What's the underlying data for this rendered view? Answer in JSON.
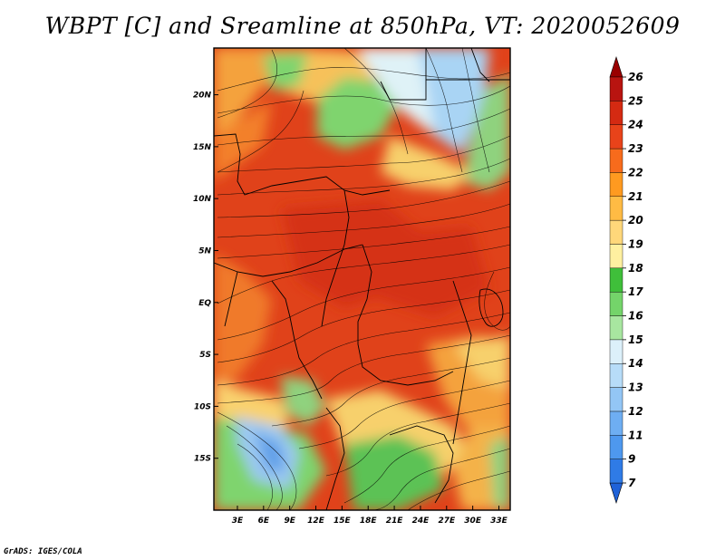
{
  "title": "WBPT [C] and Sreamline at 850hPa, VT: 2020052609",
  "credit": "GrADS: IGES/COLA",
  "map": {
    "lat_labels": [
      "20N",
      "15N",
      "10N",
      "5N",
      "EQ",
      "5S",
      "10S",
      "15S"
    ],
    "lat_values": [
      20,
      15,
      10,
      5,
      0,
      -5,
      -10,
      -15
    ],
    "lon_labels": [
      "3E",
      "6E",
      "9E",
      "12E",
      "15E",
      "18E",
      "21E",
      "24E",
      "27E",
      "30E",
      "33E"
    ],
    "lon_values": [
      3,
      6,
      9,
      12,
      15,
      18,
      21,
      24,
      27,
      30,
      33
    ],
    "lat_range": [
      -20,
      24.5
    ],
    "lon_range": [
      0.3,
      34.3
    ]
  },
  "colorbar": {
    "labels": [
      "7",
      "9",
      "11",
      "12",
      "13",
      "14",
      "15",
      "16",
      "17",
      "18",
      "19",
      "20",
      "21",
      "22",
      "23",
      "24",
      "25",
      "26"
    ],
    "colors": [
      "#1f62d8",
      "#2f7be6",
      "#4e98ee",
      "#6eaef2",
      "#93c6f5",
      "#b7dcf8",
      "#dcf0fa",
      "#a8e6a0",
      "#74d46a",
      "#3fbf3a",
      "#fff0a0",
      "#ffd77a",
      "#ffbb44",
      "#ff9a20",
      "#f76b1c",
      "#e8431a",
      "#d42a12",
      "#b81410",
      "#990000"
    ]
  }
}
